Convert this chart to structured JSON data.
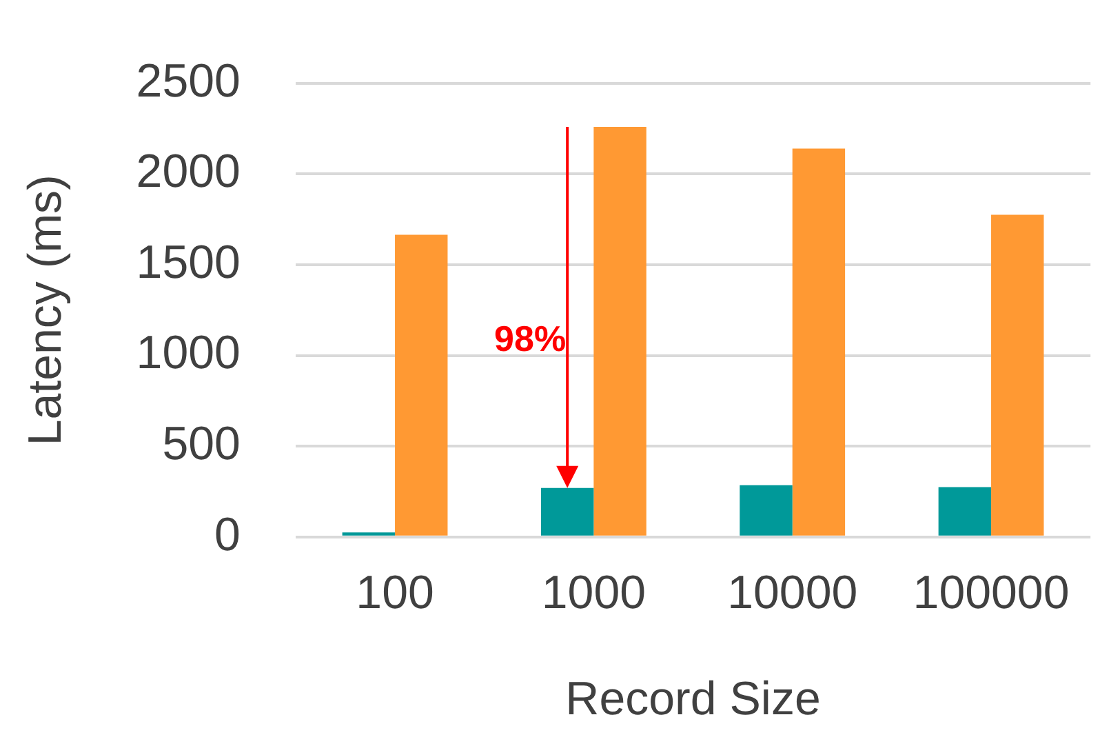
{
  "chart_data": {
    "type": "bar",
    "xlabel": "Record Size",
    "ylabel": "Latency (ms)",
    "categories": [
      "100",
      "1000",
      "10000",
      "100000"
    ],
    "series": [
      {
        "color": "#009999",
        "values": [
          25,
          270,
          285,
          275
        ]
      },
      {
        "color": "#ff9933",
        "values": [
          1665,
          2260,
          2140,
          1775
        ]
      }
    ],
    "ylim": [
      0,
      2500
    ],
    "yticks": [
      0,
      500,
      1000,
      1500,
      2000,
      2500
    ],
    "grid": "y",
    "legend": false,
    "annotations": [
      {
        "text": "98%",
        "x": "1000",
        "y": 1080
      }
    ]
  }
}
